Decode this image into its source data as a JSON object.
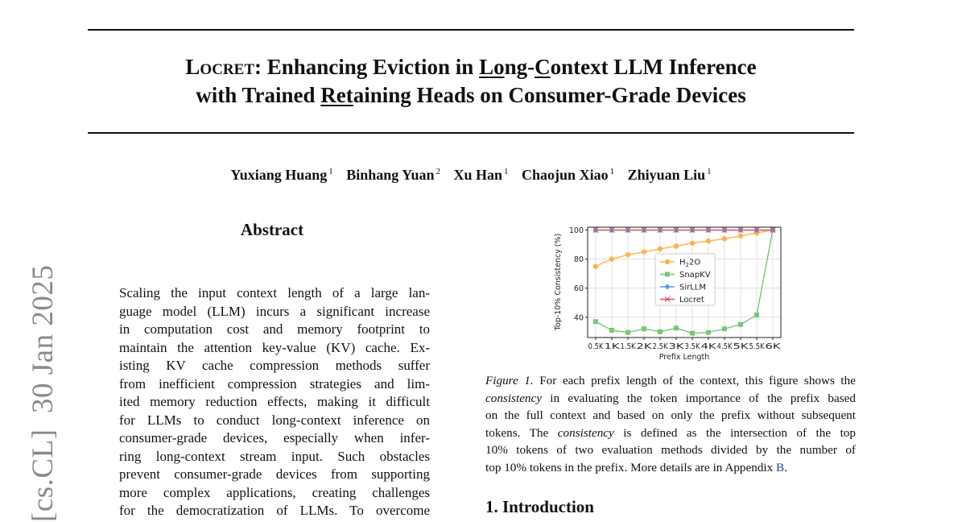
{
  "header": {
    "title_brand": "Locret",
    "title_colon": ": Enhancing Eviction in ",
    "title_lo": "Lo",
    "title_ng": "ng-",
    "title_c": "C",
    "title_ontext": "ontext LLM Inference",
    "title_with": "with Trained ",
    "title_ret": "Ret",
    "title_rest": "aining Heads on Consumer-Grade Devices"
  },
  "authors": [
    {
      "name": "Yuxiang Huang",
      "aff": "1"
    },
    {
      "name": "Binhang Yuan",
      "aff": "2"
    },
    {
      "name": "Xu Han",
      "aff": "1"
    },
    {
      "name": "Chaojun Xiao",
      "aff": "1"
    },
    {
      "name": "Zhiyuan Liu",
      "aff": "1"
    }
  ],
  "arxiv_stamp": "[cs.CL]  30 Jan 2025",
  "abstract": {
    "heading": "Abstract",
    "lines": [
      "Scaling the input context length of a large lan-",
      "guage model (LLM) incurs a significant increase",
      "in computation cost and memory footprint to",
      "maintain the attention key-value (KV) cache. Ex-",
      "isting KV cache compression methods suffer",
      "from inefficient compression strategies and lim-",
      "ited memory reduction effects, making it difficult",
      "for LLMs to conduct long-context inference on",
      "consumer-grade devices, especially when infer-",
      "ring long-context stream input.  Such obstacles",
      "prevent consumer-grade devices from supporting",
      "more complex applications, creating challenges",
      "for the democratization of LLMs.  To overcome"
    ]
  },
  "figure": {
    "caption_label": "Figure 1.",
    "caption_l1": " For each prefix length of the context, this figure shows the",
    "caption_l2_em": "consistency",
    "caption_l2": " in evaluating the token importance of the prefix based",
    "caption_l3": "on the full context and based on only the prefix without subsequent",
    "caption_l4a": "tokens.  The ",
    "caption_l4_em": "consistency",
    "caption_l4b": " is defined as the intersection of the top",
    "caption_l5": "10% tokens of two evaluation methods divided by the number of",
    "caption_l6a": "top 10% tokens in the prefix. More details are in Appendix ",
    "caption_l6_link": "B",
    "caption_l6b": "."
  },
  "chart_data": {
    "type": "line",
    "title": "",
    "xlabel": "Prefix Length",
    "ylabel": "Top-10% Consistency (%)",
    "x": [
      "0.5K",
      "1K",
      "1.5K",
      "2K",
      "2.5K",
      "3K",
      "3.5K",
      "4K",
      "4.5K",
      "5K",
      "5.5K",
      "6K"
    ],
    "yticks": [
      40,
      60,
      80,
      100
    ],
    "ylim": [
      26,
      102
    ],
    "grid": true,
    "legend_position": "center",
    "series": [
      {
        "name": "H2O",
        "name_sub": "2",
        "color": "#ffb347",
        "marker": "circle",
        "values": [
          75,
          80,
          83,
          85,
          87,
          89,
          91,
          92.5,
          94,
          96,
          98,
          100
        ]
      },
      {
        "name": "SnapKV",
        "color": "#77c77a",
        "marker": "square",
        "values": [
          37,
          31,
          29.5,
          32,
          30,
          32.5,
          29,
          29.5,
          32,
          35,
          41.5,
          100
        ]
      },
      {
        "name": "SirLLM",
        "color": "#4fa3e8",
        "marker": "diamond",
        "values": [
          100,
          100,
          100,
          100,
          100,
          100,
          100,
          100,
          100,
          100,
          100,
          100
        ]
      },
      {
        "name": "Locret",
        "color": "#e84a5f",
        "marker": "x",
        "values": [
          100,
          100,
          100,
          100,
          100,
          100,
          100,
          100,
          100,
          100,
          100,
          100
        ]
      }
    ]
  },
  "intro": {
    "heading": "1. Introduction"
  }
}
